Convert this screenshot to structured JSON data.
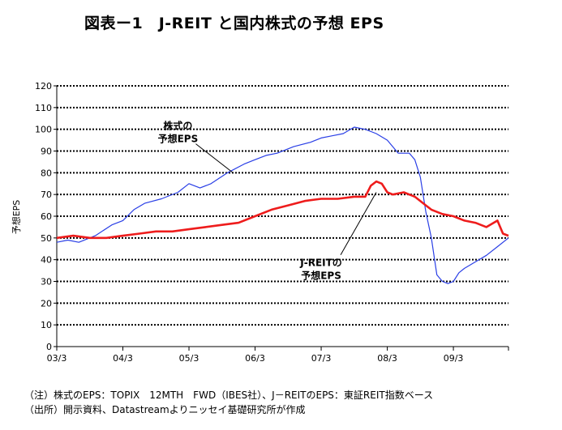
{
  "chart_data": {
    "type": "line",
    "title": "図表ー1　J-REIT と国内株式の予想 EPS",
    "ylabel": "予想EPS",
    "xlabel": "",
    "ylim": [
      0,
      120
    ],
    "yticks": [
      0,
      10,
      20,
      30,
      40,
      50,
      60,
      70,
      80,
      90,
      100,
      110,
      120
    ],
    "x_tick_labels": [
      "03/3",
      "04/3",
      "05/3",
      "06/3",
      "07/3",
      "08/3",
      "09/3"
    ],
    "x_range": [
      "2003-03",
      "2010-01"
    ],
    "grid": "dotted horizontal",
    "series": [
      {
        "name": "株式の予想EPS",
        "color": "#2a3fe6",
        "x": [
          "2003-03",
          "2003-05",
          "2003-07",
          "2003-10",
          "2004-01",
          "2004-03",
          "2004-05",
          "2004-07",
          "2004-10",
          "2005-01",
          "2005-03",
          "2005-05",
          "2005-07",
          "2005-10",
          "2006-01",
          "2006-03",
          "2006-05",
          "2006-07",
          "2006-10",
          "2007-01",
          "2007-03",
          "2007-05",
          "2007-07",
          "2007-09",
          "2007-11",
          "2008-01",
          "2008-03",
          "2008-05",
          "2008-07",
          "2008-08",
          "2008-09",
          "2008-10",
          "2008-11",
          "2008-12",
          "2009-01",
          "2009-02",
          "2009-03",
          "2009-04",
          "2009-05",
          "2009-07",
          "2009-09",
          "2009-11",
          "2010-01"
        ],
        "values": [
          48,
          49,
          48,
          51,
          56,
          58,
          63,
          66,
          68,
          71,
          75,
          73,
          75,
          80,
          84,
          86,
          88,
          89,
          92,
          94,
          96,
          97,
          98,
          101,
          100,
          98,
          95,
          89,
          89,
          86,
          78,
          62,
          50,
          33,
          30,
          29,
          30,
          34,
          36,
          39,
          42,
          46,
          50
        ]
      },
      {
        "name": "J-REITの予想EPS",
        "color": "#ee1c1c",
        "x": [
          "2003-03",
          "2003-06",
          "2003-09",
          "2003-12",
          "2004-03",
          "2004-06",
          "2004-09",
          "2004-12",
          "2005-03",
          "2005-06",
          "2005-09",
          "2005-12",
          "2006-03",
          "2006-06",
          "2006-09",
          "2006-12",
          "2007-03",
          "2007-06",
          "2007-09",
          "2007-11",
          "2007-12",
          "2008-01",
          "2008-02",
          "2008-03",
          "2008-04",
          "2008-06",
          "2008-08",
          "2008-10",
          "2008-11",
          "2009-01",
          "2009-03",
          "2009-05",
          "2009-07",
          "2009-09",
          "2009-11",
          "2009-12",
          "2010-01"
        ],
        "values": [
          50,
          51,
          50,
          50,
          51,
          52,
          53,
          53,
          54,
          55,
          56,
          57,
          60,
          63,
          65,
          67,
          68,
          68,
          69,
          69,
          74,
          76,
          75,
          71,
          70,
          71,
          69,
          65,
          63,
          61,
          60,
          58,
          57,
          55,
          58,
          52,
          51
        ]
      }
    ],
    "annotations": [
      {
        "lines": [
          "株式の",
          "予想EPS"
        ],
        "x": "2005-01",
        "y": 100,
        "points_to": {
          "x": "2005-11",
          "y": 80
        }
      },
      {
        "lines": [
          "J-REITの",
          "予想EPS"
        ],
        "x": "2007-03",
        "y": 37,
        "points_to": {
          "x": "2008-01",
          "y": 71
        }
      }
    ]
  },
  "notes": [
    "（注）株式のEPS：TOPIX　12MTH　FWD（IBES社）、J－REITのEPS：東証REIT指数ベース",
    "（出所）開示資料、Datastreamよりニッセイ基礎研究所が作成"
  ]
}
